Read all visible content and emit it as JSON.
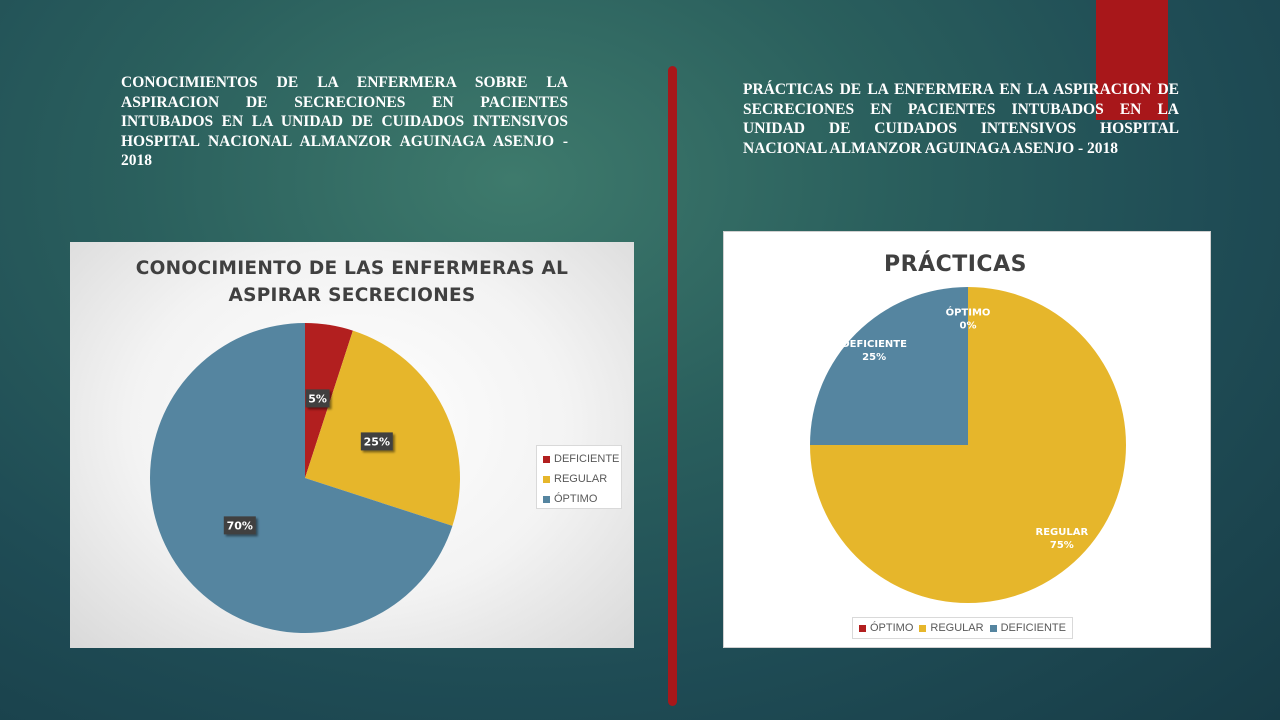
{
  "left_heading": "CONOCIMIENTOS DE LA ENFERMERA SOBRE LA ASPIRACION DE SECRECIONES EN PACIENTES INTUBADOS EN LA UNIDAD DE CUIDADOS INTENSIVOS HOSPITAL NACIONAL ALMANZOR AGUINAGA ASENJO - 2018",
  "right_heading": "PRÁCTICAS DE LA ENFERMERA EN LA ASPIRACION DE SECRECIONES EN PACIENTES INTUBADOS EN LA UNIDAD DE CUIDADOS INTENSIVOS HOSPITAL NACIONAL ALMANZOR AGUINAGA ASENJO - 2018",
  "colors": {
    "deficiente_red": "#b21f1f",
    "regular_yellow": "#e6b62b",
    "optimo_blue": "#5585a0",
    "accent_red": "#a8171a"
  },
  "chart_data": [
    {
      "type": "pie",
      "title": "CONOCIMIENTO DE LAS ENFERMERAS AL ASPIRAR SECRECIONES",
      "title_lines": [
        "CONOCIMIENTO DE LAS ENFERMERAS AL",
        "ASPIRAR SECRECIONES"
      ],
      "legend_position": "right",
      "slices": [
        {
          "label": "DEFICIENTE",
          "value": 5,
          "display": "5%",
          "color": "#b21f1f"
        },
        {
          "label": "REGULAR",
          "value": 25,
          "display": "25%",
          "color": "#e6b62b"
        },
        {
          "label": "ÓPTIMO",
          "value": 70,
          "display": "70%",
          "color": "#5585a0"
        }
      ]
    },
    {
      "type": "pie",
      "title": "PRÁCTICAS",
      "legend_position": "bottom",
      "slices": [
        {
          "label": "ÓPTIMO",
          "value": 0,
          "display": "0%",
          "color": "#b21f1f"
        },
        {
          "label": "REGULAR",
          "value": 75,
          "display": "75%",
          "color": "#e6b62b"
        },
        {
          "label": "DEFICIENTE",
          "value": 25,
          "display": "25%",
          "color": "#5585a0"
        }
      ]
    }
  ]
}
